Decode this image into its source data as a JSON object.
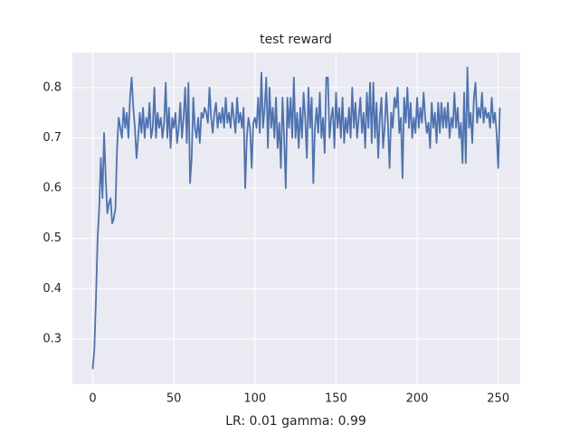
{
  "chart_data": {
    "type": "line",
    "title": "test reward",
    "xlabel": "LR: 0.01 gamma: 0.99",
    "color": "#4c72b0",
    "grid": true,
    "xlim": [
      -12.55,
      263.55
    ],
    "ylim": [
      0.21,
      0.87
    ],
    "xticks": [
      0,
      50,
      100,
      150,
      200,
      250
    ],
    "yticks": [
      0.3,
      0.4,
      0.5,
      0.6,
      0.7,
      0.8
    ],
    "x": [
      0,
      1,
      2,
      3,
      4,
      5,
      6,
      7,
      8,
      9,
      10,
      11,
      12,
      13,
      14,
      15,
      16,
      17,
      18,
      19,
      20,
      21,
      22,
      23,
      24,
      25,
      26,
      27,
      28,
      29,
      30,
      31,
      32,
      33,
      34,
      35,
      36,
      37,
      38,
      39,
      40,
      41,
      42,
      43,
      44,
      45,
      46,
      47,
      48,
      49,
      50,
      51,
      52,
      53,
      54,
      55,
      56,
      57,
      58,
      59,
      60,
      61,
      62,
      63,
      64,
      65,
      66,
      67,
      68,
      69,
      70,
      71,
      72,
      73,
      74,
      75,
      76,
      77,
      78,
      79,
      80,
      81,
      82,
      83,
      84,
      85,
      86,
      87,
      88,
      89,
      90,
      91,
      92,
      93,
      94,
      95,
      96,
      97,
      98,
      99,
      100,
      101,
      102,
      103,
      104,
      105,
      106,
      107,
      108,
      109,
      110,
      111,
      112,
      113,
      114,
      115,
      116,
      117,
      118,
      119,
      120,
      121,
      122,
      123,
      124,
      125,
      126,
      127,
      128,
      129,
      130,
      131,
      132,
      133,
      134,
      135,
      136,
      137,
      138,
      139,
      140,
      141,
      142,
      143,
      144,
      145,
      146,
      147,
      148,
      149,
      150,
      151,
      152,
      153,
      154,
      155,
      156,
      157,
      158,
      159,
      160,
      161,
      162,
      163,
      164,
      165,
      166,
      167,
      168,
      169,
      170,
      171,
      172,
      173,
      174,
      175,
      176,
      177,
      178,
      179,
      180,
      181,
      182,
      183,
      184,
      185,
      186,
      187,
      188,
      189,
      190,
      191,
      192,
      193,
      194,
      195,
      196,
      197,
      198,
      199,
      200,
      201,
      202,
      203,
      204,
      205,
      206,
      207,
      208,
      209,
      210,
      211,
      212,
      213,
      214,
      215,
      216,
      217,
      218,
      219,
      220,
      221,
      222,
      223,
      224,
      225,
      226,
      227,
      228,
      229,
      230,
      231,
      232,
      233,
      234,
      235,
      236,
      237,
      238,
      239,
      240,
      241,
      242,
      243,
      244,
      245,
      246,
      247,
      248,
      249,
      250,
      251
    ],
    "values": [
      0.24,
      0.28,
      0.38,
      0.5,
      0.56,
      0.66,
      0.58,
      0.71,
      0.62,
      0.55,
      0.57,
      0.58,
      0.53,
      0.54,
      0.56,
      0.68,
      0.74,
      0.72,
      0.7,
      0.76,
      0.72,
      0.75,
      0.7,
      0.78,
      0.82,
      0.76,
      0.72,
      0.66,
      0.7,
      0.75,
      0.71,
      0.76,
      0.7,
      0.74,
      0.72,
      0.77,
      0.7,
      0.72,
      0.8,
      0.7,
      0.75,
      0.72,
      0.74,
      0.7,
      0.73,
      0.81,
      0.7,
      0.76,
      0.68,
      0.74,
      0.72,
      0.75,
      0.69,
      0.72,
      0.77,
      0.7,
      0.74,
      0.8,
      0.69,
      0.81,
      0.61,
      0.66,
      0.78,
      0.72,
      0.7,
      0.74,
      0.69,
      0.75,
      0.74,
      0.76,
      0.75,
      0.73,
      0.8,
      0.74,
      0.71,
      0.75,
      0.77,
      0.72,
      0.75,
      0.73,
      0.76,
      0.72,
      0.78,
      0.73,
      0.75,
      0.72,
      0.77,
      0.74,
      0.71,
      0.78,
      0.73,
      0.75,
      0.72,
      0.76,
      0.6,
      0.7,
      0.74,
      0.72,
      0.64,
      0.73,
      0.74,
      0.72,
      0.78,
      0.71,
      0.83,
      0.72,
      0.76,
      0.82,
      0.68,
      0.8,
      0.72,
      0.76,
      0.7,
      0.78,
      0.68,
      0.73,
      0.64,
      0.78,
      0.7,
      0.6,
      0.78,
      0.72,
      0.78,
      0.7,
      0.82,
      0.7,
      0.75,
      0.68,
      0.76,
      0.7,
      0.79,
      0.74,
      0.66,
      0.8,
      0.72,
      0.78,
      0.61,
      0.72,
      0.76,
      0.71,
      0.79,
      0.7,
      0.74,
      0.67,
      0.82,
      0.82,
      0.7,
      0.74,
      0.76,
      0.68,
      0.79,
      0.72,
      0.76,
      0.7,
      0.78,
      0.69,
      0.74,
      0.71,
      0.76,
      0.7,
      0.8,
      0.72,
      0.77,
      0.7,
      0.74,
      0.78,
      0.71,
      0.75,
      0.68,
      0.79,
      0.72,
      0.81,
      0.69,
      0.81,
      0.7,
      0.77,
      0.66,
      0.74,
      0.78,
      0.68,
      0.72,
      0.79,
      0.73,
      0.64,
      0.75,
      0.72,
      0.78,
      0.76,
      0.8,
      0.71,
      0.74,
      0.62,
      0.78,
      0.73,
      0.8,
      0.72,
      0.77,
      0.7,
      0.74,
      0.71,
      0.78,
      0.72,
      0.76,
      0.73,
      0.79,
      0.74,
      0.71,
      0.73,
      0.68,
      0.77,
      0.72,
      0.75,
      0.69,
      0.77,
      0.71,
      0.77,
      0.72,
      0.76,
      0.72,
      0.77,
      0.7,
      0.74,
      0.72,
      0.79,
      0.72,
      0.76,
      0.7,
      0.73,
      0.65,
      0.79,
      0.65,
      0.84,
      0.72,
      0.75,
      0.69,
      0.78,
      0.81,
      0.73,
      0.76,
      0.74,
      0.79,
      0.73,
      0.76,
      0.74,
      0.75,
      0.72,
      0.78,
      0.73,
      0.75,
      0.71,
      0.64,
      0.76
    ]
  }
}
